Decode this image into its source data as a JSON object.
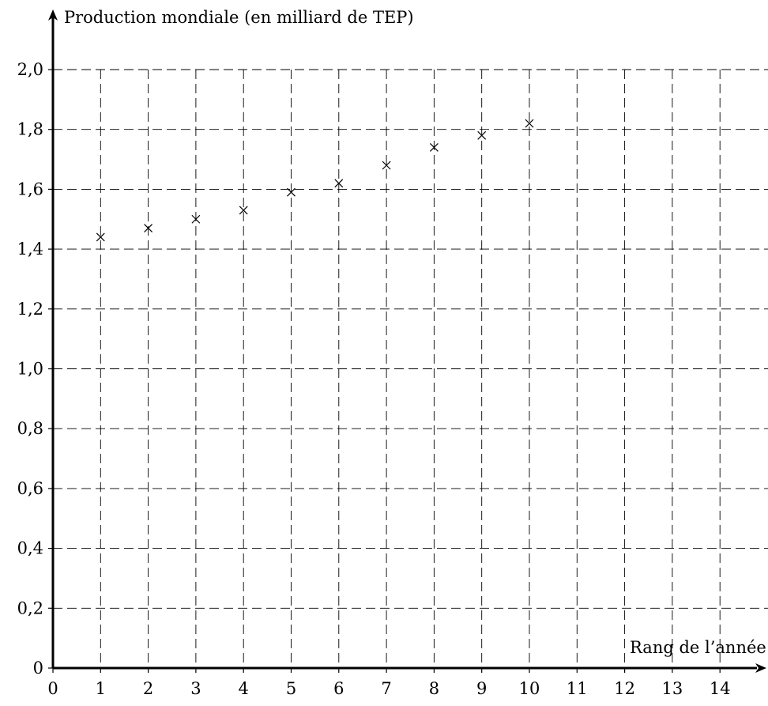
{
  "chart_data": {
    "type": "scatter",
    "title": "",
    "ylabel": "Production mondiale (en milliard de TEP)",
    "xlabel": "Rang de l’année",
    "xlim": [
      0,
      15
    ],
    "ylim": [
      0,
      2.0
    ],
    "x_ticks": [
      0,
      1,
      2,
      3,
      4,
      5,
      6,
      7,
      8,
      9,
      10,
      11,
      12,
      13,
      14
    ],
    "x_tick_labels": [
      "0",
      "1",
      "2",
      "3",
      "4",
      "5",
      "6",
      "7",
      "8",
      "9",
      "10",
      "11",
      "12",
      "13",
      "14"
    ],
    "y_ticks": [
      0,
      0.2,
      0.4,
      0.6,
      0.8,
      1.0,
      1.2,
      1.4,
      1.6,
      1.8,
      2.0
    ],
    "y_tick_labels": [
      "0",
      "0,2",
      "0,4",
      "0,6",
      "0,8",
      "1,0",
      "1,2",
      "1,4",
      "1,6",
      "1,8",
      "2,0"
    ],
    "grid": true,
    "grid_style": "dashed",
    "marker": "x",
    "x": [
      1,
      2,
      3,
      4,
      5,
      6,
      7,
      8,
      9,
      10
    ],
    "y": [
      1.44,
      1.47,
      1.5,
      1.53,
      1.59,
      1.62,
      1.68,
      1.74,
      1.78,
      1.82
    ]
  }
}
